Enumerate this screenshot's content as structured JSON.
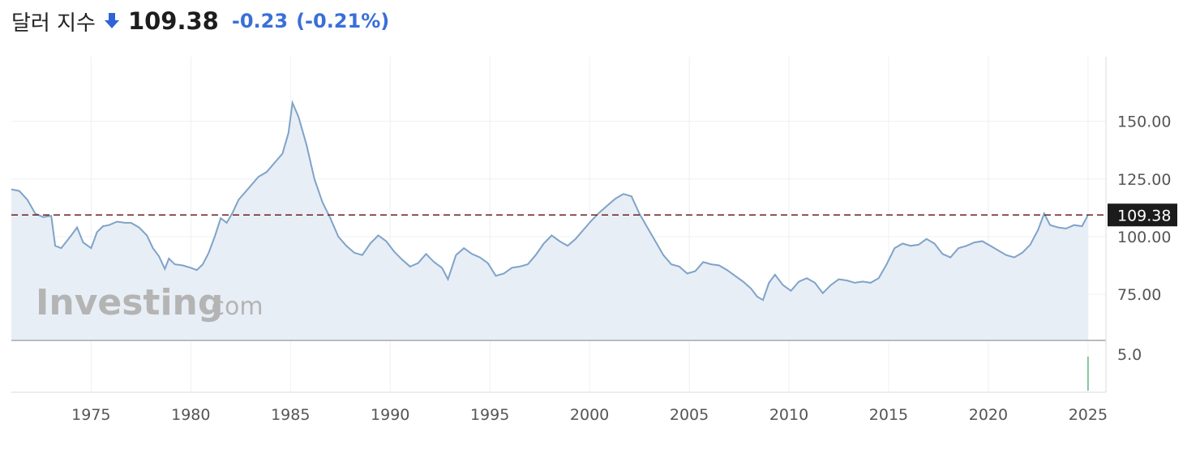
{
  "header": {
    "title": "달러 지수",
    "arrow_icon": "arrow-down-icon",
    "price": "109.38",
    "change": "-0.23",
    "change_pct": "(-0.21%)",
    "change_color": "#3a6fd8"
  },
  "watermark": {
    "brand": "Investing",
    "suffix": ".com"
  },
  "colors": {
    "line": "#7fa3c8",
    "area": "#e8eef6",
    "grid": "#eef0f3",
    "price_tag_bg": "#1b1b1b",
    "price_line": "#6b1f1f",
    "volume": "#7fc79a"
  },
  "chart_data": {
    "type": "area",
    "title": "",
    "xlabel": "",
    "ylabel": "",
    "x_ticks": [
      "1975",
      "1980",
      "1985",
      "1990",
      "1995",
      "2000",
      "2005",
      "2010",
      "2015",
      "2020",
      "2025"
    ],
    "y_ticks": [
      "75.00",
      "100.00",
      "125.00",
      "150.00"
    ],
    "ylim": [
      55,
      178
    ],
    "xlim": [
      1971.0,
      2025.9
    ],
    "last_price_label": "109.38",
    "last_price": 109.38,
    "volume_tick": "5.0",
    "series": [
      {
        "x": [
          1971.0,
          1971.4,
          1971.8,
          1972.2,
          1972.6,
          1973.0,
          1973.2,
          1973.5,
          1974.0,
          1974.3,
          1974.6,
          1975.0,
          1975.3,
          1975.6,
          1975.9,
          1976.3,
          1976.7,
          1977.0,
          1977.4,
          1977.8,
          1978.1,
          1978.4,
          1978.7,
          1978.9,
          1979.2,
          1979.6,
          1980.0,
          1980.3,
          1980.6,
          1980.9,
          1981.2,
          1981.5,
          1981.8,
          1982.1,
          1982.4,
          1982.7,
          1983.0,
          1983.4,
          1983.8,
          1984.2,
          1984.6,
          1984.9,
          1985.1,
          1985.4,
          1985.8,
          1986.2,
          1986.6,
          1987.0,
          1987.4,
          1987.8,
          1988.2,
          1988.6,
          1989.0,
          1989.4,
          1989.8,
          1990.2,
          1990.6,
          1991.0,
          1991.4,
          1991.8,
          1992.2,
          1992.6,
          1992.9,
          1993.3,
          1993.7,
          1994.1,
          1994.5,
          1994.9,
          1995.3,
          1995.7,
          1996.1,
          1996.5,
          1996.9,
          1997.3,
          1997.7,
          1998.1,
          1998.5,
          1998.9,
          1999.3,
          1999.7,
          2000.1,
          2000.5,
          2000.9,
          2001.3,
          2001.7,
          2002.1,
          2002.5,
          2002.9,
          2003.3,
          2003.7,
          2004.1,
          2004.5,
          2004.9,
          2005.3,
          2005.7,
          2006.1,
          2006.5,
          2006.9,
          2007.3,
          2007.7,
          2008.1,
          2008.4,
          2008.7,
          2009.0,
          2009.3,
          2009.7,
          2010.1,
          2010.5,
          2010.9,
          2011.3,
          2011.7,
          2012.1,
          2012.5,
          2012.9,
          2013.3,
          2013.7,
          2014.1,
          2014.5,
          2014.9,
          2015.3,
          2015.7,
          2016.1,
          2016.5,
          2016.9,
          2017.3,
          2017.7,
          2018.1,
          2018.5,
          2018.9,
          2019.3,
          2019.7,
          2020.1,
          2020.5,
          2020.9,
          2021.3,
          2021.7,
          2022.1,
          2022.5,
          2022.8,
          2023.1,
          2023.5,
          2023.9,
          2024.3,
          2024.7,
          2025.0
        ],
        "values": [
          120.5,
          119.8,
          116.0,
          110.0,
          108.5,
          109.0,
          96.0,
          95.0,
          100.5,
          104.0,
          97.5,
          95.0,
          102.0,
          104.5,
          105.0,
          106.5,
          106.0,
          106.0,
          104.0,
          100.5,
          95.0,
          91.5,
          86.0,
          90.5,
          88.0,
          87.5,
          86.5,
          85.5,
          88.0,
          93.0,
          100.0,
          108.0,
          106.0,
          110.5,
          116.0,
          119.0,
          122.0,
          126.0,
          128.0,
          132.0,
          136.0,
          145.0,
          158.0,
          152.0,
          140.0,
          125.0,
          115.0,
          108.0,
          100.0,
          96.0,
          93.0,
          92.0,
          97.0,
          100.5,
          98.0,
          93.5,
          90.0,
          87.0,
          88.5,
          92.5,
          89.0,
          86.5,
          81.5,
          92.0,
          95.0,
          92.5,
          91.0,
          88.5,
          83.0,
          84.0,
          86.5,
          87.0,
          88.0,
          92.0,
          97.0,
          100.5,
          98.0,
          96.0,
          99.0,
          103.0,
          107.0,
          110.5,
          113.5,
          116.5,
          118.5,
          117.5,
          110.0,
          104.0,
          98.0,
          92.0,
          88.0,
          87.0,
          84.0,
          85.0,
          89.0,
          88.0,
          87.5,
          85.5,
          83.0,
          80.5,
          77.5,
          74.0,
          72.5,
          80.0,
          83.5,
          79.0,
          76.5,
          80.5,
          82.0,
          80.0,
          75.5,
          79.0,
          81.5,
          81.0,
          80.0,
          80.5,
          80.0,
          82.0,
          88.0,
          95.0,
          97.0,
          96.0,
          96.5,
          99.0,
          97.0,
          92.5,
          91.0,
          95.0,
          96.0,
          97.5,
          98.0,
          96.0,
          94.0,
          92.0,
          91.0,
          93.0,
          96.5,
          103.0,
          110.0,
          105.0,
          104.0,
          103.5,
          105.0,
          104.5,
          109.4
        ]
      }
    ]
  }
}
